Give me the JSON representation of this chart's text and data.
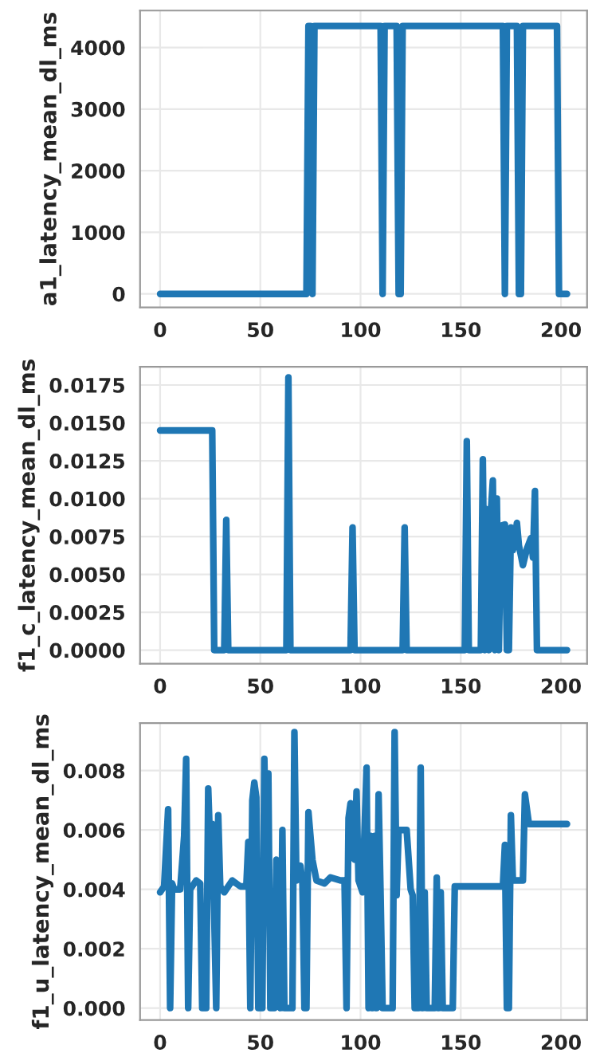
{
  "chart_data": [
    {
      "type": "line",
      "ylabel": "a1_latency_mean_dl_ms",
      "xlim": [
        -10,
        213
      ],
      "xticks": [
        0,
        50,
        100,
        150,
        200
      ],
      "ylim": [
        -220,
        4600
      ],
      "yticks": [
        0,
        1000,
        2000,
        3000,
        4000
      ],
      "grid": true,
      "marker": "none",
      "line_style": "solid",
      "series": [
        {
          "color": "#1f77b4",
          "x": [
            0,
            73,
            74,
            75,
            76,
            77,
            110,
            111,
            112,
            113,
            118,
            119,
            120,
            121,
            171,
            172,
            173,
            178,
            179,
            180,
            181,
            198,
            199,
            203
          ],
          "values": [
            0,
            0,
            4350,
            4350,
            0,
            4350,
            4350,
            0,
            4350,
            4350,
            4350,
            0,
            0,
            4350,
            4350,
            0,
            4350,
            4350,
            0,
            0,
            4350,
            4350,
            0,
            0
          ]
        }
      ]
    },
    {
      "type": "line",
      "ylabel": "f1_c_latency_mean_dl_ms",
      "xlim": [
        -10,
        213
      ],
      "xticks": [
        0,
        50,
        100,
        150,
        200
      ],
      "ylim": [
        -0.0009,
        0.0187
      ],
      "yticks": [
        {
          "value": 0,
          "label": "0.0000"
        },
        {
          "value": 0.0025,
          "label": "0.0025"
        },
        {
          "value": 0.005,
          "label": "0.0050"
        },
        {
          "value": 0.0075,
          "label": "0.0075"
        },
        {
          "value": 0.01,
          "label": "0.0100"
        },
        {
          "value": 0.0125,
          "label": "0.0125"
        },
        {
          "value": 0.015,
          "label": "0.0150"
        },
        {
          "value": 0.0175,
          "label": "0.0175"
        }
      ],
      "grid": true,
      "marker": "none",
      "line_style": "solid",
      "series": [
        {
          "color": "#1f77b4",
          "x": [
            0,
            26,
            27,
            32,
            33,
            34,
            63,
            64,
            65,
            95,
            96,
            97,
            121,
            122,
            123,
            152,
            153,
            154,
            160,
            161,
            162,
            163,
            164,
            165,
            166,
            167,
            168,
            169,
            170,
            172,
            173,
            174,
            175,
            176,
            177,
            178,
            179,
            181,
            183,
            185,
            186,
            187,
            188,
            203
          ],
          "values": [
            0.0145,
            0.0145,
            0,
            0,
            0.0086,
            0,
            0,
            0.018,
            0,
            0,
            0.0081,
            0,
            0,
            0.0081,
            0,
            0,
            0.0138,
            0,
            0,
            0.0126,
            0,
            0.0093,
            0,
            0.0091,
            0.0112,
            0,
            0.01,
            0,
            0.0082,
            0.0083,
            0,
            0,
            0.0081,
            0.0066,
            0.0073,
            0.0084,
            0.0069,
            0.0056,
            0.0067,
            0.0074,
            0.0061,
            0.0105,
            0,
            0
          ]
        }
      ]
    },
    {
      "type": "line",
      "ylabel": "f1_u_latency_mean_dl_ms",
      "xlim": [
        -10,
        213
      ],
      "xticks": [
        0,
        50,
        100,
        150,
        200
      ],
      "ylim": [
        -0.0004,
        0.0096
      ],
      "yticks": [
        {
          "value": 0,
          "label": "0.000"
        },
        {
          "value": 0.002,
          "label": "0.002"
        },
        {
          "value": 0.004,
          "label": "0.004"
        },
        {
          "value": 0.006,
          "label": "0.006"
        },
        {
          "value": 0.008,
          "label": "0.008"
        }
      ],
      "grid": true,
      "marker": "none",
      "line_style": "solid",
      "series": [
        {
          "color": "#1f77b4",
          "x": [
            0,
            2,
            4,
            5,
            6,
            7,
            10,
            12,
            13,
            14,
            15,
            18,
            20,
            21,
            23,
            24,
            25,
            26,
            28,
            29,
            30,
            32,
            36,
            40,
            43,
            44,
            45,
            46,
            47,
            48,
            49,
            51,
            52,
            53,
            54,
            55,
            57,
            58,
            59,
            60,
            61,
            62,
            66,
            67,
            68,
            70,
            71,
            72,
            73,
            74,
            76,
            78,
            82,
            85,
            90,
            92,
            93,
            94,
            95,
            97,
            98,
            99,
            101,
            103,
            104,
            105,
            106,
            107,
            108,
            109,
            110,
            111,
            116,
            117,
            118,
            119,
            123,
            125,
            126,
            127,
            129,
            130,
            131,
            132,
            133,
            137,
            138,
            139,
            140,
            141,
            146,
            147,
            171,
            172,
            173,
            174,
            175,
            176,
            181,
            182,
            184,
            203
          ],
          "values": [
            0.0039,
            0.0041,
            0.0067,
            0,
            0.0042,
            0.004,
            0.004,
            0.0058,
            0.0084,
            0,
            0.004,
            0.0043,
            0.0042,
            0,
            0,
            0.0074,
            0.0054,
            0.0062,
            0,
            0.0065,
            0.0041,
            0.0039,
            0.0043,
            0.0041,
            0.0041,
            0.0056,
            0,
            0.007,
            0.0076,
            0.0071,
            0,
            0,
            0.0084,
            0.0048,
            0.0079,
            0,
            0,
            0.005,
            0.0049,
            0,
            0.006,
            0,
            0,
            0.0093,
            0.0043,
            0.0048,
            0.0042,
            0,
            0,
            0.0066,
            0.005,
            0.0043,
            0.0042,
            0.0044,
            0.0043,
            0.0043,
            0,
            0.0064,
            0.0069,
            0.005,
            0.0073,
            0.0043,
            0.0039,
            0.0081,
            0,
            0.0058,
            0,
            0.0058,
            0,
            0.0072,
            0.0038,
            0,
            0,
            0.0093,
            0.0038,
            0.006,
            0.006,
            0.004,
            0.0038,
            0,
            0,
            0.0081,
            0,
            0.0039,
            0,
            0,
            0.0044,
            0,
            0.0039,
            0,
            0,
            0.0041,
            0.0041,
            0.0055,
            0,
            0,
            0.0065,
            0.0043,
            0.0043,
            0.0072,
            0.0062,
            0.0062
          ]
        }
      ]
    }
  ]
}
